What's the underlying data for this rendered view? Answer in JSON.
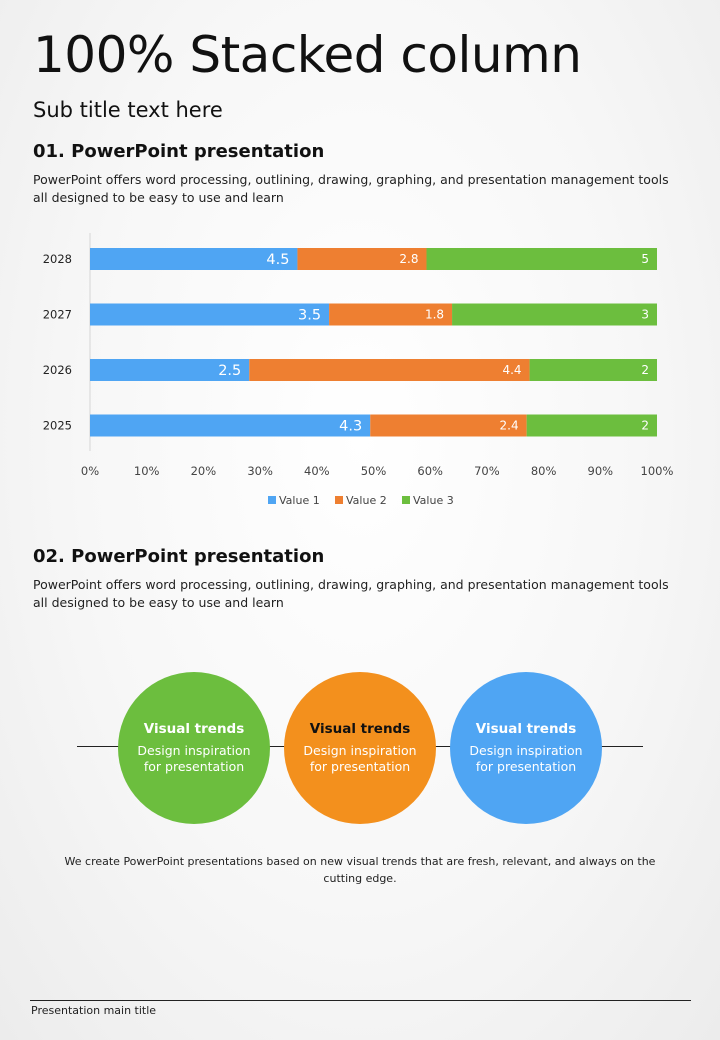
{
  "page": {
    "title": "100% Stacked column",
    "subtitle": "Sub title text here"
  },
  "section1": {
    "heading": "01. PowerPoint presentation",
    "body": "PowerPoint offers word processing, outlining, drawing, graphing, and presentation management tools all designed to be easy to use and learn"
  },
  "chart_data": {
    "type": "bar",
    "orientation": "horizontal",
    "stacking": "percent",
    "title": "",
    "xlabel": "",
    "ylabel": "",
    "categories": [
      "2028",
      "2027",
      "2026",
      "2025"
    ],
    "series": [
      {
        "name": "Value  1",
        "values": [
          4.5,
          3.5,
          2.5,
          4.3
        ],
        "color": "#4fa5f3"
      },
      {
        "name": "Value  2",
        "values": [
          2.8,
          1.8,
          4.4,
          2.4
        ],
        "color": "#ee7f31"
      },
      {
        "name": "Value  3",
        "values": [
          5,
          3,
          2,
          2
        ],
        "color": "#6cbe3e"
      }
    ],
    "x_ticks": [
      "0%",
      "10%",
      "20%",
      "30%",
      "40%",
      "50%",
      "60%",
      "70%",
      "80%",
      "90%",
      "100%"
    ],
    "xlim": [
      0,
      100
    ],
    "grid": false,
    "legend_position": "bottom"
  },
  "section2": {
    "heading": "02. PowerPoint presentation",
    "body": "PowerPoint offers word processing, outlining, drawing, graphing, and presentation management tools all designed to be easy to use and learn"
  },
  "circles": [
    {
      "title": "Visual trends",
      "desc": "Design inspiration for presentation",
      "color": "#6cbe3e",
      "title_color": "#ffffff",
      "desc_color": "#ffffff"
    },
    {
      "title": "Visual trends",
      "desc": "Design inspiration for presentation",
      "color": "#f3901d",
      "title_color": "#111111",
      "desc_color": "#ffffff"
    },
    {
      "title": "Visual trends",
      "desc": "Design inspiration for presentation",
      "color": "#4fa5f3",
      "title_color": "#ffffff",
      "desc_color": "#ffffff"
    }
  ],
  "caption": "We create PowerPoint presentations based on new visual trends that are fresh, relevant, and always on the cutting edge.",
  "footer": {
    "text": "Presentation main title"
  }
}
